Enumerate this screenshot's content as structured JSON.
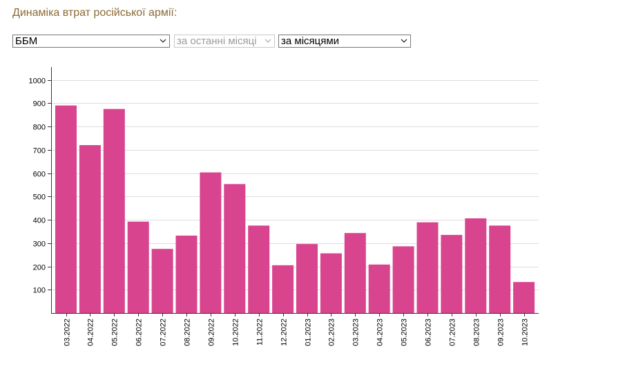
{
  "page": {
    "title": "Динаміка втрат російської армії:"
  },
  "filters": {
    "category": {
      "value": "ББМ",
      "enabled": true
    },
    "period": {
      "value": "за останні місяці",
      "enabled": false
    },
    "grouping": {
      "value": "за місяцями",
      "enabled": true
    }
  },
  "colors": {
    "bar": "#d9448f",
    "grid": "#dddddd",
    "axis": "#333333",
    "title": "#8b6a33"
  },
  "chart_data": {
    "type": "bar",
    "title": "",
    "xlabel": "",
    "ylabel": "",
    "ylim": [
      0,
      1000
    ],
    "yticks": [
      100,
      200,
      300,
      400,
      500,
      600,
      700,
      800,
      900,
      1000
    ],
    "grid": true,
    "categories": [
      "03.2022",
      "04.2022",
      "05.2022",
      "06.2022",
      "07.2022",
      "08.2022",
      "09.2022",
      "10.2022",
      "11.2022",
      "12.2022",
      "01.2023",
      "02.2023",
      "03.2023",
      "04.2023",
      "05.2023",
      "06.2023",
      "07.2023",
      "08.2023",
      "09.2023",
      "10.2023"
    ],
    "values": [
      890,
      720,
      875,
      392,
      275,
      332,
      603,
      553,
      375,
      205,
      296,
      256,
      343,
      208,
      286,
      389,
      335,
      406,
      375,
      133
    ]
  }
}
